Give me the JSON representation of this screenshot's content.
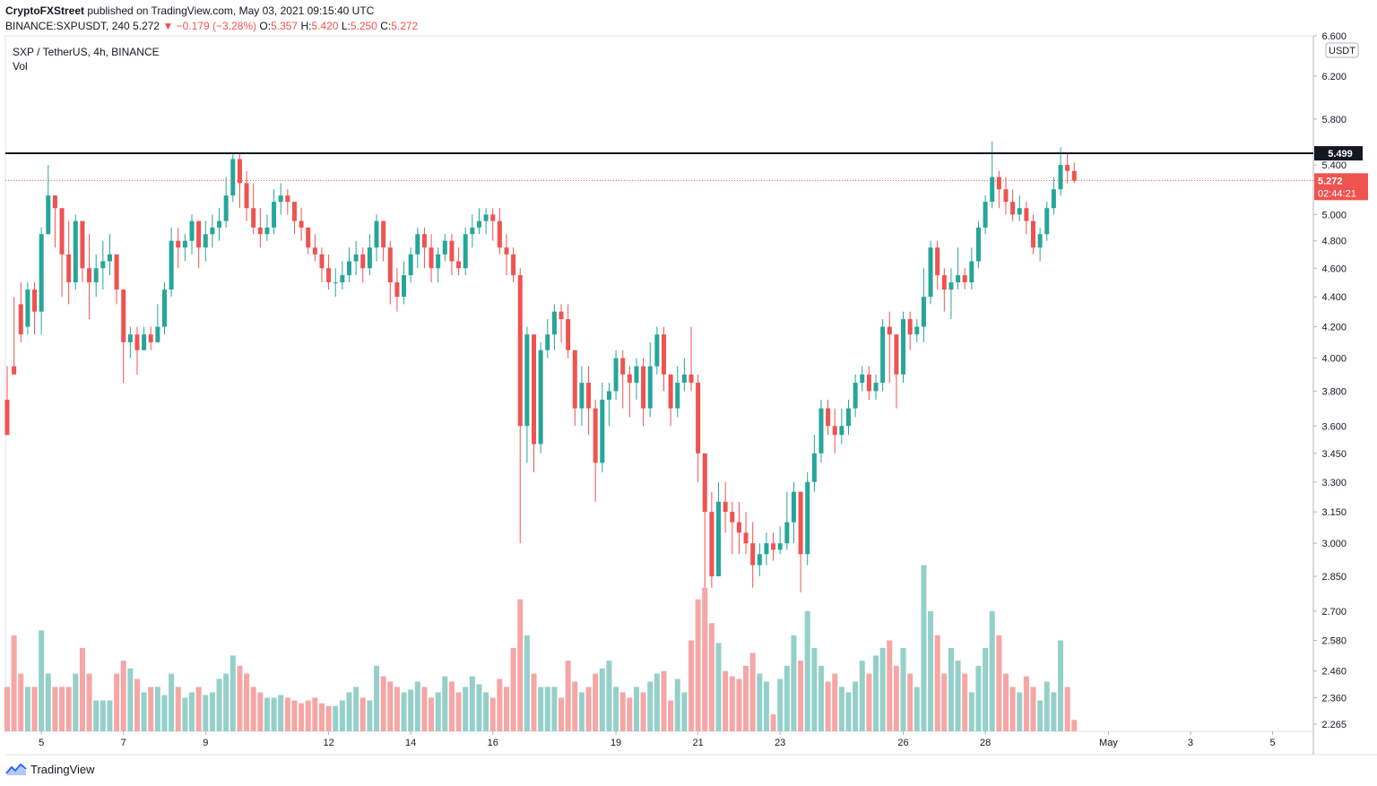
{
  "header": {
    "publisher": "CryptoFXStreet",
    "published_text": "published on TradingView.com, May 03, 2021 09:15:40 UTC",
    "symbol": "BINANCE:SXPUSDT, 240",
    "last": "5.272",
    "change": "▼ −0.179 (−3.28%)",
    "o_label": "O:",
    "o_val": "5.357",
    "h_label": "H:",
    "h_val": "5.420",
    "l_label": "L:",
    "l_val": "5.250",
    "c_label": "C:",
    "c_val": "5.272"
  },
  "legend": {
    "title": "SXP / TetherUS, 4h, BINANCE",
    "volume": "Vol"
  },
  "footer": {
    "brand": "TradingView"
  },
  "colors": {
    "up": "#26a69a",
    "down": "#ef5350",
    "vol_up": "#94d0c9",
    "vol_down": "#f5a6a5",
    "line": "#131722"
  },
  "chart_data": {
    "type": "candlestick",
    "y_scale": "log",
    "ylim": [
      2.24,
      6.6
    ],
    "currency_label": "USDT",
    "y_ticks": [
      6.6,
      6.2,
      5.8,
      5.4,
      5.0,
      4.8,
      4.6,
      4.4,
      4.2,
      4.0,
      3.8,
      3.6,
      3.45,
      3.3,
      3.15,
      3.0,
      2.85,
      2.7,
      2.58,
      2.46,
      2.36,
      2.265
    ],
    "y_tick_labels": [
      "6.600",
      "6.200",
      "5.800",
      "5.400",
      "5.000",
      "4.800",
      "4.600",
      "4.400",
      "4.200",
      "4.000",
      "3.800",
      "3.600",
      "3.450",
      "3.300",
      "3.150",
      "3.000",
      "2.850",
      "2.700",
      "2.580",
      "2.460",
      "2.360",
      "2.265"
    ],
    "x_ticks": [
      {
        "label": "5",
        "i": 5
      },
      {
        "label": "7",
        "i": 17
      },
      {
        "label": "9",
        "i": 29
      },
      {
        "label": "12",
        "i": 47
      },
      {
        "label": "14",
        "i": 59
      },
      {
        "label": "16",
        "i": 71
      },
      {
        "label": "19",
        "i": 89
      },
      {
        "label": "21",
        "i": 101
      },
      {
        "label": "23",
        "i": 113
      },
      {
        "label": "26",
        "i": 131
      },
      {
        "label": "28",
        "i": 143
      },
      {
        "label": "May",
        "i": 161
      },
      {
        "label": "3",
        "i": 173
      },
      {
        "label": "5",
        "i": 185
      }
    ],
    "horizontal_line": {
      "value": 5.499,
      "label": "5.499"
    },
    "last_price": {
      "value": 5.272,
      "label": "5.272",
      "countdown": "02:44:21"
    },
    "candles": [
      [
        3.75,
        3.55,
        3.95,
        3.55,
        2.4
      ],
      [
        3.95,
        3.9,
        4.4,
        3.9,
        2.6
      ],
      [
        4.35,
        4.15,
        4.5,
        4.1,
        2.45
      ],
      [
        4.2,
        4.45,
        4.5,
        4.15,
        2.4
      ],
      [
        4.45,
        4.3,
        4.5,
        4.15,
        2.4
      ],
      [
        4.3,
        4.85,
        4.9,
        4.15,
        2.62
      ],
      [
        4.85,
        5.15,
        5.4,
        4.85,
        2.45
      ],
      [
        5.15,
        5.05,
        5.15,
        4.75,
        2.4
      ],
      [
        5.05,
        4.7,
        5.05,
        4.4,
        2.4
      ],
      [
        4.7,
        4.5,
        4.95,
        4.35,
        2.4
      ],
      [
        4.5,
        4.95,
        5.0,
        4.45,
        2.45
      ],
      [
        4.95,
        4.6,
        4.8,
        4.5,
        2.55
      ],
      [
        4.6,
        4.5,
        4.85,
        4.25,
        2.45
      ],
      [
        4.5,
        4.6,
        4.7,
        4.4,
        2.35
      ],
      [
        4.6,
        4.65,
        4.8,
        4.45,
        2.35
      ],
      [
        4.65,
        4.7,
        4.85,
        4.55,
        2.35
      ],
      [
        4.7,
        4.45,
        4.7,
        4.35,
        2.45
      ],
      [
        4.45,
        4.1,
        4.45,
        3.85,
        2.5
      ],
      [
        4.1,
        4.15,
        4.2,
        4.0,
        2.47
      ],
      [
        4.15,
        4.05,
        4.2,
        3.9,
        2.43
      ],
      [
        4.05,
        4.15,
        4.2,
        4.05,
        2.38
      ],
      [
        4.15,
        4.1,
        4.2,
        4.05,
        2.4
      ],
      [
        4.1,
        4.2,
        4.35,
        4.1,
        2.4
      ],
      [
        4.2,
        4.45,
        4.5,
        4.15,
        2.37
      ],
      [
        4.45,
        4.8,
        4.9,
        4.4,
        2.45
      ],
      [
        4.8,
        4.75,
        4.9,
        4.6,
        2.4
      ],
      [
        4.75,
        4.8,
        4.85,
        4.65,
        2.36
      ],
      [
        4.8,
        4.95,
        5.0,
        4.7,
        2.38
      ],
      [
        4.95,
        4.75,
        4.95,
        4.6,
        2.4
      ],
      [
        4.75,
        4.85,
        4.95,
        4.65,
        2.37
      ],
      [
        4.85,
        4.9,
        5.0,
        4.75,
        2.38
      ],
      [
        4.9,
        4.95,
        5.05,
        4.8,
        2.43
      ],
      [
        4.95,
        5.15,
        5.3,
        4.9,
        2.45
      ],
      [
        5.15,
        5.45,
        5.5,
        5.1,
        2.52
      ],
      [
        5.45,
        5.25,
        5.5,
        5.05,
        2.48
      ],
      [
        5.25,
        5.05,
        5.35,
        4.95,
        2.45
      ],
      [
        5.05,
        4.9,
        5.25,
        4.85,
        2.4
      ],
      [
        4.9,
        4.85,
        5.05,
        4.75,
        2.38
      ],
      [
        4.85,
        4.9,
        5.0,
        4.8,
        2.36
      ],
      [
        4.9,
        5.1,
        5.2,
        4.85,
        2.36
      ],
      [
        5.1,
        5.15,
        5.25,
        5.0,
        2.37
      ],
      [
        5.15,
        5.1,
        5.2,
        5.0,
        2.36
      ],
      [
        5.1,
        4.95,
        5.1,
        4.85,
        2.35
      ],
      [
        4.95,
        4.9,
        5.05,
        4.8,
        2.34
      ],
      [
        4.9,
        4.75,
        4.9,
        4.7,
        2.35
      ],
      [
        4.75,
        4.7,
        4.85,
        4.65,
        2.36
      ],
      [
        4.7,
        4.6,
        4.75,
        4.5,
        2.34
      ],
      [
        4.6,
        4.5,
        4.7,
        4.45,
        2.33
      ],
      [
        4.5,
        4.5,
        4.6,
        4.4,
        2.33
      ],
      [
        4.5,
        4.55,
        4.65,
        4.45,
        2.35
      ],
      [
        4.55,
        4.65,
        4.75,
        4.5,
        2.38
      ],
      [
        4.65,
        4.7,
        4.8,
        4.55,
        2.4
      ],
      [
        4.7,
        4.6,
        4.75,
        4.5,
        2.36
      ],
      [
        4.6,
        4.75,
        4.85,
        4.55,
        2.35
      ],
      [
        4.75,
        4.95,
        5.0,
        4.65,
        2.48
      ],
      [
        4.95,
        4.75,
        4.95,
        4.65,
        2.44
      ],
      [
        4.75,
        4.5,
        4.8,
        4.35,
        2.42
      ],
      [
        4.5,
        4.4,
        4.6,
        4.3,
        2.4
      ],
      [
        4.4,
        4.55,
        4.65,
        4.35,
        2.38
      ],
      [
        4.55,
        4.7,
        4.75,
        4.5,
        2.39
      ],
      [
        4.7,
        4.85,
        4.9,
        4.6,
        2.42
      ],
      [
        4.85,
        4.75,
        4.9,
        4.6,
        2.4
      ],
      [
        4.75,
        4.6,
        4.85,
        4.5,
        2.36
      ],
      [
        4.6,
        4.7,
        4.75,
        4.5,
        2.38
      ],
      [
        4.7,
        4.8,
        4.85,
        4.65,
        2.44
      ],
      [
        4.8,
        4.65,
        4.85,
        4.55,
        2.42
      ],
      [
        4.65,
        4.6,
        4.75,
        4.55,
        2.38
      ],
      [
        4.6,
        4.85,
        4.9,
        4.55,
        2.4
      ],
      [
        4.85,
        4.9,
        5.0,
        4.75,
        2.44
      ],
      [
        4.9,
        4.95,
        5.05,
        4.85,
        2.41
      ],
      [
        4.95,
        5.0,
        5.05,
        4.85,
        2.38
      ],
      [
        5.0,
        4.95,
        5.05,
        4.8,
        2.36
      ],
      [
        4.95,
        4.75,
        5.05,
        4.7,
        2.43
      ],
      [
        4.75,
        4.7,
        4.85,
        4.55,
        2.4
      ],
      [
        4.7,
        4.55,
        4.75,
        4.5,
        2.55
      ],
      [
        4.55,
        3.6,
        4.6,
        3.0,
        2.75
      ],
      [
        3.6,
        4.15,
        4.2,
        3.4,
        2.6
      ],
      [
        4.15,
        3.5,
        4.15,
        3.35,
        2.45
      ],
      [
        3.5,
        4.05,
        4.1,
        3.45,
        2.4
      ],
      [
        4.05,
        4.15,
        4.25,
        4.0,
        2.4
      ],
      [
        4.15,
        4.3,
        4.35,
        4.05,
        2.4
      ],
      [
        4.3,
        4.25,
        4.35,
        4.1,
        2.36
      ],
      [
        4.25,
        4.05,
        4.35,
        4.0,
        2.5
      ],
      [
        4.05,
        3.7,
        4.05,
        3.6,
        2.42
      ],
      [
        3.7,
        3.85,
        3.95,
        3.6,
        2.38
      ],
      [
        3.85,
        3.7,
        3.95,
        3.55,
        2.4
      ],
      [
        3.7,
        3.4,
        3.75,
        3.2,
        2.45
      ],
      [
        3.4,
        3.75,
        3.85,
        3.35,
        2.47
      ],
      [
        3.75,
        3.8,
        3.85,
        3.6,
        2.5
      ],
      [
        3.8,
        4.0,
        4.05,
        3.75,
        2.4
      ],
      [
        4.0,
        3.9,
        4.05,
        3.7,
        2.38
      ],
      [
        3.9,
        3.85,
        3.95,
        3.65,
        2.36
      ],
      [
        3.85,
        3.95,
        4.0,
        3.75,
        2.4
      ],
      [
        3.95,
        3.7,
        4.0,
        3.6,
        2.38
      ],
      [
        3.7,
        3.95,
        4.1,
        3.65,
        2.42
      ],
      [
        3.95,
        4.15,
        4.2,
        3.9,
        2.45
      ],
      [
        4.15,
        3.9,
        4.2,
        3.8,
        2.46
      ],
      [
        3.9,
        3.7,
        3.9,
        3.6,
        2.35
      ],
      [
        3.7,
        3.85,
        3.95,
        3.65,
        2.43
      ],
      [
        3.85,
        3.9,
        4.0,
        3.8,
        2.38
      ],
      [
        3.9,
        3.85,
        4.2,
        3.8,
        2.58
      ],
      [
        3.85,
        3.45,
        3.9,
        3.3,
        2.75
      ],
      [
        3.45,
        3.15,
        3.45,
        2.8,
        2.8
      ],
      [
        3.15,
        2.85,
        3.25,
        2.8,
        2.65
      ],
      [
        2.85,
        3.2,
        3.3,
        2.85,
        2.57
      ],
      [
        3.2,
        3.15,
        3.3,
        3.05,
        2.46
      ],
      [
        3.15,
        3.1,
        3.2,
        2.95,
        2.44
      ],
      [
        3.1,
        3.05,
        3.2,
        2.95,
        2.43
      ],
      [
        3.05,
        3.0,
        3.15,
        2.95,
        2.48
      ],
      [
        3.0,
        2.9,
        3.1,
        2.8,
        2.53
      ],
      [
        2.9,
        2.95,
        3.0,
        2.85,
        2.45
      ],
      [
        2.95,
        3.0,
        3.05,
        2.9,
        2.42
      ],
      [
        3.0,
        2.97,
        3.05,
        2.92,
        2.3
      ],
      [
        2.97,
        3.0,
        3.08,
        2.95,
        2.43
      ],
      [
        3.0,
        3.1,
        3.25,
        2.97,
        2.48
      ],
      [
        3.1,
        3.25,
        3.3,
        3.0,
        2.6
      ],
      [
        3.25,
        2.95,
        3.25,
        2.78,
        2.5
      ],
      [
        2.95,
        3.3,
        3.35,
        2.9,
        2.7
      ],
      [
        3.3,
        3.45,
        3.55,
        3.25,
        2.55
      ],
      [
        3.45,
        3.7,
        3.75,
        3.4,
        2.48
      ],
      [
        3.7,
        3.6,
        3.75,
        3.55,
        2.42
      ],
      [
        3.6,
        3.55,
        3.7,
        3.45,
        2.45
      ],
      [
        3.55,
        3.6,
        3.7,
        3.5,
        2.4
      ],
      [
        3.6,
        3.7,
        3.75,
        3.55,
        2.38
      ],
      [
        3.7,
        3.85,
        3.9,
        3.65,
        2.42
      ],
      [
        3.85,
        3.9,
        3.95,
        3.8,
        2.5
      ],
      [
        3.9,
        3.8,
        3.95,
        3.75,
        2.45
      ],
      [
        3.8,
        3.85,
        3.9,
        3.75,
        2.52
      ],
      [
        3.85,
        4.2,
        4.25,
        3.8,
        2.55
      ],
      [
        4.2,
        4.15,
        4.3,
        3.85,
        2.58
      ],
      [
        4.15,
        3.9,
        4.15,
        3.7,
        2.48
      ],
      [
        3.9,
        4.25,
        4.3,
        3.85,
        2.55
      ],
      [
        4.25,
        4.15,
        4.3,
        4.05,
        2.45
      ],
      [
        4.15,
        4.2,
        4.25,
        4.1,
        2.4
      ],
      [
        4.2,
        4.4,
        4.6,
        4.1,
        2.9
      ],
      [
        4.4,
        4.75,
        4.8,
        4.35,
        2.7
      ],
      [
        4.75,
        4.55,
        4.8,
        4.45,
        2.6
      ],
      [
        4.55,
        4.45,
        4.6,
        4.3,
        2.45
      ],
      [
        4.45,
        4.5,
        4.6,
        4.25,
        2.55
      ],
      [
        4.5,
        4.55,
        4.75,
        4.45,
        2.5
      ],
      [
        4.55,
        4.5,
        4.6,
        4.45,
        2.45
      ],
      [
        4.5,
        4.65,
        4.75,
        4.45,
        2.38
      ],
      [
        4.65,
        4.9,
        4.95,
        4.6,
        2.48
      ],
      [
        4.9,
        5.1,
        5.15,
        4.85,
        2.55
      ],
      [
        5.1,
        5.3,
        5.6,
        5.05,
        2.7
      ],
      [
        5.3,
        5.2,
        5.35,
        5.05,
        2.6
      ],
      [
        5.2,
        5.1,
        5.3,
        5.0,
        2.45
      ],
      [
        5.1,
        5.0,
        5.2,
        4.95,
        2.4
      ],
      [
        5.0,
        5.05,
        5.15,
        4.95,
        2.38
      ],
      [
        5.05,
        4.95,
        5.1,
        4.85,
        2.44
      ],
      [
        4.95,
        4.75,
        5.0,
        4.7,
        2.4
      ],
      [
        4.75,
        4.85,
        4.9,
        4.65,
        2.35
      ],
      [
        4.85,
        5.05,
        5.1,
        4.8,
        2.42
      ],
      [
        5.05,
        5.2,
        5.3,
        5.0,
        2.38
      ],
      [
        5.2,
        5.4,
        5.55,
        5.15,
        2.58
      ],
      [
        5.4,
        5.35,
        5.5,
        5.25,
        2.4
      ],
      [
        5.35,
        5.27,
        5.42,
        5.25,
        2.28
      ]
    ]
  }
}
